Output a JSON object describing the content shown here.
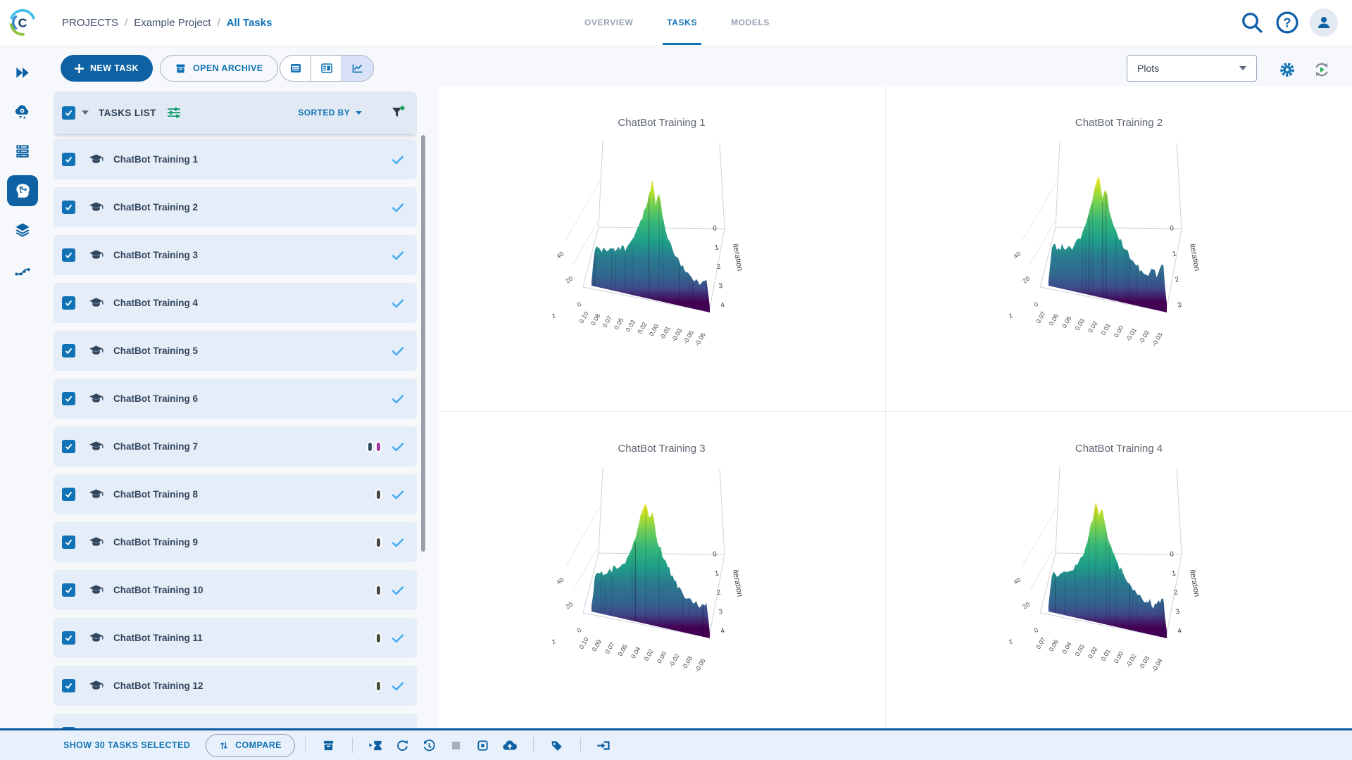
{
  "brand": {
    "logo_letter": "C"
  },
  "header": {
    "breadcrumb": {
      "root": "PROJECTS",
      "project": "Example Project",
      "current": "All Tasks",
      "separator": "/"
    },
    "tabs": [
      {
        "label": "OVERVIEW",
        "active": false
      },
      {
        "label": "TASKS",
        "active": true
      },
      {
        "label": "MODELS",
        "active": false
      }
    ],
    "icons": [
      "search-icon",
      "help-icon",
      "user-avatar"
    ]
  },
  "toolbar": {
    "new_task_label": "NEW TASK",
    "open_archive_label": "OPEN ARCHIVE",
    "view_modes": [
      "table-view",
      "details-split-view",
      "plots-view"
    ],
    "active_view": "plots-view",
    "metric_dropdown_value": "Plots",
    "right_icons": [
      "settings-gear-icon",
      "auto-refresh-icon"
    ]
  },
  "sidebar": {
    "items": [
      "expand-menu",
      "applications",
      "workers-queues",
      "projects",
      "datasets",
      "pipelines"
    ],
    "active_item": "projects"
  },
  "tasks_panel": {
    "title": "TASKS LIST",
    "sorted_by_label": "SORTED BY",
    "header_icons": [
      "select-all-checkbox",
      "caret-down-icon",
      "tune-columns-icon",
      "filter-funnel-icon"
    ],
    "items": [
      {
        "name": "ChatBot Training 1",
        "checked": true,
        "status_check": true,
        "tag_colors": []
      },
      {
        "name": "ChatBot Training 2",
        "checked": true,
        "status_check": true,
        "tag_colors": []
      },
      {
        "name": "ChatBot Training 3",
        "checked": true,
        "status_check": true,
        "tag_colors": []
      },
      {
        "name": "ChatBot Training 4",
        "checked": true,
        "status_check": true,
        "tag_colors": []
      },
      {
        "name": "ChatBot Training 5",
        "checked": true,
        "status_check": true,
        "tag_colors": []
      },
      {
        "name": "ChatBot Training 6",
        "checked": true,
        "status_check": true,
        "tag_colors": []
      },
      {
        "name": "ChatBot Training 7",
        "checked": true,
        "status_check": true,
        "tag_colors": [
          "#33505e",
          "#a23ba5"
        ]
      },
      {
        "name": "ChatBot Training 8",
        "checked": true,
        "status_check": true,
        "tag_colors": [
          "#474747"
        ]
      },
      {
        "name": "ChatBot Training 9",
        "checked": true,
        "status_check": true,
        "tag_colors": [
          "#474747"
        ]
      },
      {
        "name": "ChatBot Training 10",
        "checked": true,
        "status_check": true,
        "tag_colors": [
          "#474747"
        ]
      },
      {
        "name": "ChatBot Training 11",
        "checked": true,
        "status_check": true,
        "tag_colors": [
          "#47523a"
        ]
      },
      {
        "name": "ChatBot Training 12",
        "checked": true,
        "status_check": true,
        "tag_colors": [
          "#47523a"
        ]
      }
    ],
    "partial_row_visible": true
  },
  "footer": {
    "selection_label": "SHOW 30 TASKS SELECTED",
    "compare_label": "COMPARE",
    "action_icons": [
      "compare",
      "archive",
      "enqueue",
      "reset",
      "history",
      "stop",
      "abort-all-children",
      "publish",
      "add-tag",
      "move-to-project"
    ]
  },
  "chart_data": [
    {
      "type": "surface",
      "title": "ChatBot Training 1",
      "colorscale": "viridis",
      "x_ticks": [
        "0.10",
        "0.08",
        "0.07",
        "0.05",
        "0.03",
        "0.02",
        "0.00",
        "-0.01",
        "-0.03",
        "-0.05",
        "-0.06"
      ],
      "y_label": "iteration",
      "y_ticks": [
        0,
        1,
        2,
        3,
        4
      ],
      "z_label": "z",
      "z_ticks": [
        0,
        20,
        40
      ],
      "z_range": [
        0,
        45
      ],
      "silhouette": [
        0.04,
        0.3,
        0.33,
        0.31,
        0.34,
        0.32,
        0.35,
        0.33,
        0.36,
        0.38,
        0.36,
        0.4,
        0.45,
        0.52,
        0.58,
        0.66,
        0.75,
        0.88,
        1.0,
        0.8,
        0.9,
        0.72,
        0.6,
        0.52,
        0.46,
        0.4,
        0.36,
        0.33,
        0.3,
        0.26,
        0.24,
        0.27,
        0.22,
        0.25,
        0.28,
        0.05
      ]
    },
    {
      "type": "surface",
      "title": "ChatBot Training 2",
      "colorscale": "viridis",
      "x_ticks": [
        "0.07",
        "0.06",
        "0.05",
        "0.03",
        "0.02",
        "0.01",
        "0.00",
        "-0.01",
        "-0.02",
        "-0.03"
      ],
      "y_label": "iteration",
      "y_ticks": [
        0,
        1,
        2,
        3
      ],
      "z_label": "z",
      "z_ticks": [
        0,
        20,
        40
      ],
      "z_range": [
        0,
        45
      ],
      "silhouette": [
        0.05,
        0.32,
        0.35,
        0.33,
        0.36,
        0.34,
        0.38,
        0.36,
        0.4,
        0.44,
        0.5,
        0.58,
        0.68,
        0.8,
        0.95,
        1.0,
        0.85,
        0.92,
        0.75,
        0.65,
        0.58,
        0.52,
        0.48,
        0.44,
        0.4,
        0.36,
        0.34,
        0.3,
        0.28,
        0.26,
        0.3,
        0.34,
        0.28,
        0.35,
        0.4,
        0.06
      ]
    },
    {
      "type": "surface",
      "title": "ChatBot Training 3",
      "colorscale": "viridis",
      "x_ticks": [
        "0.10",
        "0.09",
        "0.07",
        "0.05",
        "0.04",
        "0.02",
        "0.00",
        "-0.02",
        "-0.03",
        "-0.05"
      ],
      "y_label": "iteration",
      "y_ticks": [
        0,
        1,
        2,
        3,
        4
      ],
      "z_label": "z",
      "z_ticks": [
        0,
        20,
        40
      ],
      "z_range": [
        0,
        45
      ],
      "silhouette": [
        0.05,
        0.3,
        0.32,
        0.34,
        0.33,
        0.36,
        0.38,
        0.42,
        0.4,
        0.44,
        0.48,
        0.55,
        0.6,
        0.7,
        0.82,
        0.95,
        1.0,
        0.88,
        0.94,
        0.78,
        0.68,
        0.6,
        0.55,
        0.5,
        0.44,
        0.4,
        0.36,
        0.32,
        0.3,
        0.28,
        0.25,
        0.28,
        0.24,
        0.26,
        0.3,
        0.05
      ]
    },
    {
      "type": "surface",
      "title": "ChatBot Training 4",
      "colorscale": "viridis",
      "x_ticks": [
        "0.07",
        "0.06",
        "0.04",
        "0.03",
        "0.02",
        "0.01",
        "0.00",
        "-0.02",
        "-0.03",
        "-0.04"
      ],
      "y_label": "iteration",
      "y_ticks": [
        0,
        1,
        2,
        3,
        4
      ],
      "z_label": "z",
      "z_ticks": [
        0,
        20,
        40
      ],
      "z_range": [
        0,
        45
      ],
      "silhouette": [
        0.05,
        0.31,
        0.34,
        0.32,
        0.35,
        0.37,
        0.36,
        0.4,
        0.43,
        0.47,
        0.52,
        0.6,
        0.72,
        0.85,
        1.0,
        0.9,
        0.96,
        0.8,
        0.7,
        0.62,
        0.56,
        0.5,
        0.46,
        0.42,
        0.38,
        0.35,
        0.32,
        0.3,
        0.27,
        0.25,
        0.28,
        0.24,
        0.27,
        0.3,
        0.33,
        0.05
      ]
    }
  ],
  "colors": {
    "primary_blue": "#0e62a3",
    "link_blue": "#1173b5",
    "row_bg": "#e5edf8",
    "panel_header_bg": "#e1e9f4",
    "footer_bg": "#e8f1fb",
    "footer_border": "#0b5aa1",
    "status_check_blue": "#43a8f5",
    "page_bg": "#f6f8fc",
    "active_toggle_bg": "#d9e2f8",
    "tune_green": "#0f9d6e",
    "filter_dot_green": "#18a558"
  }
}
